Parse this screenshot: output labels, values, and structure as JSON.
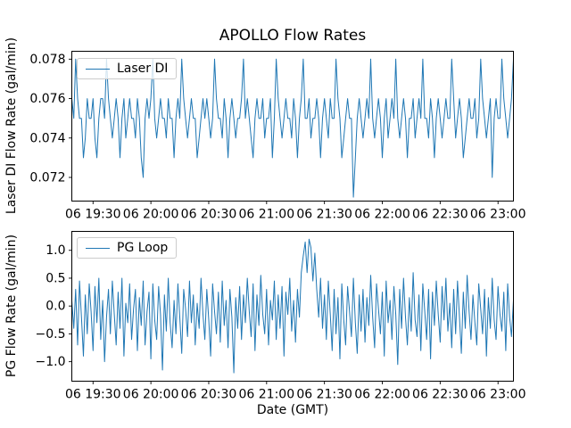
{
  "figure_title": "APOLLO Flow Rates",
  "colors": {
    "line": "#1f77b4",
    "spine": "#000000",
    "legend_border": "#cccccc",
    "background": "#ffffff"
  },
  "x_axis": {
    "label": "Date (GMT)",
    "tick_labels": [
      "06 19:30",
      "06 20:00",
      "06 20:30",
      "06 21:00",
      "06 21:30",
      "06 22:00",
      "06 22:30",
      "06 23:00"
    ],
    "tick_minutes": [
      1170,
      1200,
      1230,
      1260,
      1290,
      1320,
      1350,
      1380
    ],
    "xlim_minutes": [
      1159,
      1388
    ],
    "grid": false
  },
  "chart_data": [
    {
      "type": "line",
      "title": "APOLLO Flow Rates",
      "ylabel": "Laser DI Flow Rate (gal/min)",
      "xlabel": "",
      "yticks": [
        0.072,
        0.074,
        0.076,
        0.078
      ],
      "ytick_labels": [
        "0.072",
        "0.074",
        "0.076",
        "0.078"
      ],
      "ylim": [
        0.0708,
        0.0784
      ],
      "legend": {
        "position": "upper left"
      },
      "series": [
        {
          "name": "Laser DI",
          "color": "#1f77b4",
          "x_start_minute": 1159,
          "x_step_minutes": 1,
          "values": [
            0.076,
            0.075,
            0.078,
            0.076,
            0.075,
            0.075,
            0.073,
            0.074,
            0.076,
            0.075,
            0.075,
            0.076,
            0.074,
            0.073,
            0.075,
            0.076,
            0.076,
            0.075,
            0.078,
            0.076,
            0.075,
            0.074,
            0.075,
            0.076,
            0.075,
            0.073,
            0.075,
            0.076,
            0.074,
            0.075,
            0.076,
            0.075,
            0.075,
            0.074,
            0.076,
            0.075,
            0.073,
            0.072,
            0.075,
            0.076,
            0.075,
            0.076,
            0.078,
            0.075,
            0.074,
            0.075,
            0.076,
            0.075,
            0.075,
            0.074,
            0.076,
            0.075,
            0.075,
            0.073,
            0.075,
            0.076,
            0.075,
            0.078,
            0.076,
            0.075,
            0.074,
            0.075,
            0.076,
            0.075,
            0.075,
            0.073,
            0.074,
            0.075,
            0.076,
            0.075,
            0.076,
            0.075,
            0.074,
            0.075,
            0.078,
            0.076,
            0.075,
            0.075,
            0.074,
            0.076,
            0.075,
            0.073,
            0.075,
            0.076,
            0.075,
            0.074,
            0.075,
            0.075,
            0.076,
            0.078,
            0.075,
            0.076,
            0.075,
            0.074,
            0.073,
            0.075,
            0.076,
            0.075,
            0.075,
            0.076,
            0.074,
            0.075,
            0.075,
            0.076,
            0.073,
            0.075,
            0.078,
            0.076,
            0.075,
            0.074,
            0.075,
            0.076,
            0.075,
            0.075,
            0.074,
            0.076,
            0.075,
            0.073,
            0.075,
            0.076,
            0.078,
            0.075,
            0.075,
            0.076,
            0.074,
            0.075,
            0.075,
            0.076,
            0.075,
            0.073,
            0.075,
            0.076,
            0.075,
            0.074,
            0.076,
            0.075,
            0.075,
            0.078,
            0.076,
            0.075,
            0.073,
            0.074,
            0.075,
            0.076,
            0.075,
            0.075,
            0.071,
            0.073,
            0.075,
            0.076,
            0.075,
            0.074,
            0.075,
            0.076,
            0.075,
            0.078,
            0.075,
            0.074,
            0.075,
            0.076,
            0.075,
            0.073,
            0.075,
            0.076,
            0.074,
            0.075,
            0.076,
            0.075,
            0.078,
            0.075,
            0.074,
            0.075,
            0.076,
            0.075,
            0.073,
            0.075,
            0.075,
            0.076,
            0.074,
            0.075,
            0.076,
            0.075,
            0.078,
            0.075,
            0.075,
            0.074,
            0.076,
            0.075,
            0.073,
            0.075,
            0.076,
            0.075,
            0.074,
            0.075,
            0.076,
            0.075,
            0.075,
            0.078,
            0.076,
            0.074,
            0.075,
            0.076,
            0.075,
            0.073,
            0.074,
            0.075,
            0.076,
            0.075,
            0.075,
            0.076,
            0.074,
            0.075,
            0.078,
            0.076,
            0.075,
            0.074,
            0.075,
            0.076,
            0.072,
            0.075,
            0.076,
            0.075,
            0.075,
            0.078,
            0.076,
            0.075,
            0.074,
            0.075,
            0.076,
            0.078
          ]
        }
      ]
    },
    {
      "type": "line",
      "title": "",
      "ylabel": "PG Flow Rate (gal/min)",
      "xlabel": "Date (GMT)",
      "yticks": [
        -1.0,
        -0.5,
        0.0,
        0.5,
        1.0
      ],
      "ytick_labels": [
        "−1.0",
        "−0.5",
        "0.0",
        "0.5",
        "1.0"
      ],
      "ylim": [
        -1.35,
        1.34
      ],
      "legend": {
        "position": "upper left"
      },
      "series": [
        {
          "name": "PG Loop",
          "color": "#1f77b4",
          "x_start_minute": 1159,
          "x_step_minutes": 1,
          "values": [
            0.1,
            -0.4,
            0.3,
            -0.7,
            0.45,
            -0.2,
            -0.9,
            0.2,
            -0.5,
            0.4,
            -0.1,
            -0.8,
            0.35,
            -0.3,
            0.5,
            -0.6,
            0.1,
            -1.0,
            -0.2,
            0.3,
            -0.5,
            0.45,
            -0.15,
            -0.7,
            0.25,
            -0.4,
            0.5,
            -0.9,
            0.05,
            -0.3,
            0.4,
            -0.6,
            -0.05,
            0.3,
            -0.8,
            0.15,
            -0.35,
            0.45,
            -0.7,
            -0.1,
            0.25,
            -0.95,
            0.4,
            -0.25,
            -0.6,
            0.35,
            -0.15,
            -1.15,
            0.2,
            -0.45,
            0.5,
            -0.3,
            -0.75,
            0.1,
            -0.5,
            0.4,
            -0.2,
            -0.85,
            0.3,
            -0.05,
            -0.55,
            0.45,
            -0.3,
            0.2,
            -0.7,
            0.05,
            -0.4,
            0.5,
            -0.15,
            -0.6,
            0.3,
            -0.25,
            -0.9,
            0.4,
            -0.1,
            -0.5,
            0.25,
            -0.65,
            0.45,
            -0.35,
            0.1,
            -0.75,
            0.3,
            -0.2,
            -1.2,
            0.15,
            -0.4,
            0.35,
            -0.6,
            0.2,
            -0.3,
            0.5,
            -0.1,
            -0.55,
            0.4,
            -0.8,
            0.2,
            -0.35,
            0.55,
            -0.15,
            -0.5,
            0.3,
            -0.7,
            0.1,
            -0.25,
            0.45,
            -0.6,
            0.2,
            -0.4,
            0.35,
            -0.9,
            0.25,
            -0.15,
            0.5,
            -0.45,
            0.1,
            -0.65,
            0.3,
            -0.2,
            0.6,
            0.9,
            1.15,
            0.6,
            1.2,
            1.05,
            0.45,
            0.95,
            0.3,
            -0.2,
            0.5,
            -0.4,
            0.2,
            -0.6,
            0.45,
            -0.15,
            -0.8,
            0.3,
            -0.5,
            0.15,
            -0.95,
            0.4,
            -0.25,
            -0.7,
            0.35,
            -0.1,
            -0.55,
            0.5,
            -0.3,
            -0.85,
            0.2,
            -0.45,
            0.3,
            -0.65,
            0.15,
            -0.35,
            0.55,
            -0.2,
            -0.75,
            0.4,
            -0.05,
            -0.5,
            0.25,
            -0.9,
            0.45,
            -0.3,
            0.1,
            -0.6,
            0.35,
            -0.15,
            -1.05,
            0.3,
            -0.4,
            0.5,
            -0.2,
            -0.7,
            0.15,
            -0.45,
            0.6,
            -0.25,
            -0.55,
            0.2,
            -0.8,
            0.4,
            -0.1,
            -0.6,
            0.3,
            -0.95,
            0.25,
            -0.35,
            0.45,
            -0.15,
            -0.65,
            0.35,
            -0.25,
            0.5,
            -0.45,
            0.05,
            -0.75,
            0.3,
            -0.5,
            0.45,
            -0.2,
            -0.85,
            0.25,
            -0.4,
            0.55,
            -0.1,
            -0.6,
            0.2,
            -0.3,
            -0.7,
            0.4,
            -0.05,
            -0.5,
            0.3,
            -0.9,
            0.15,
            -0.4,
            0.5,
            -0.25,
            -0.6,
            0.35,
            -0.15,
            -0.45,
            0.25,
            -0.8,
            0.4,
            -0.2,
            -0.55,
            0.1
          ]
        }
      ]
    }
  ]
}
